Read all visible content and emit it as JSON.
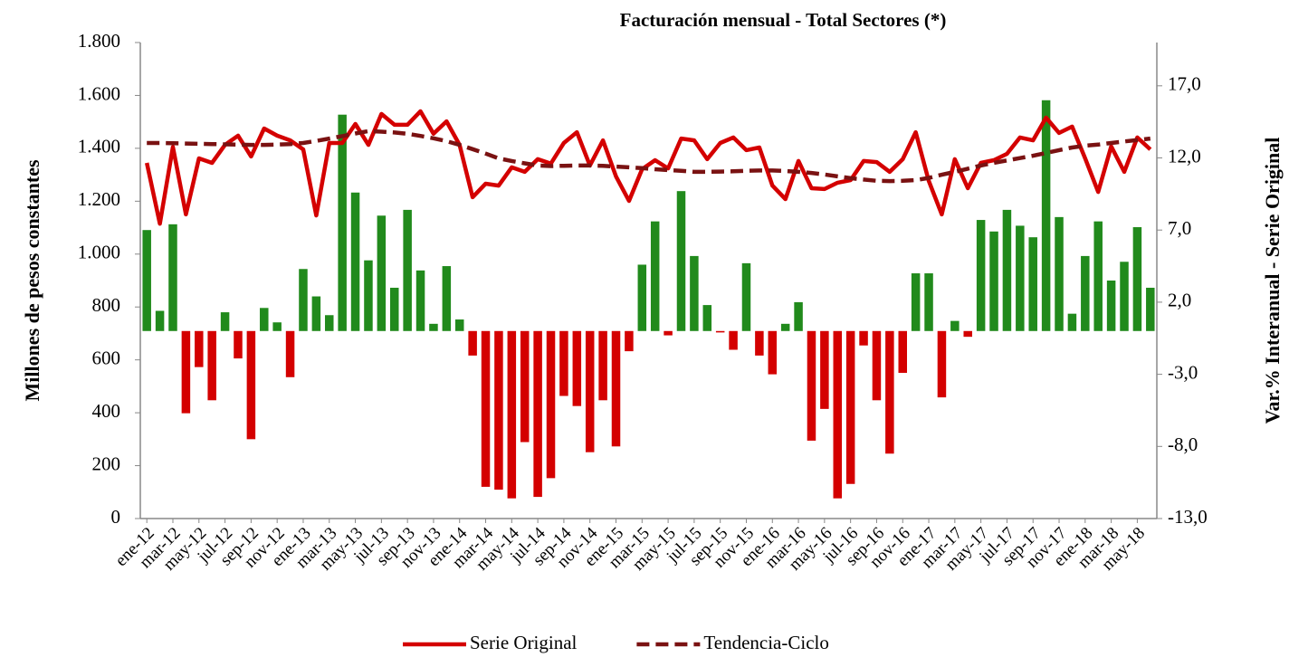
{
  "chart_data": {
    "type": "bar_line",
    "title": "Facturación mensual -  Total Sectores (*)",
    "y_label": "Millones de pesos constantes",
    "y2_label": "Var.% Interanual - Serie Original",
    "categories": [
      "ene-12",
      null,
      "mar-12",
      null,
      "may-12",
      null,
      "jul-12",
      null,
      "sep-12",
      null,
      "nov-12",
      null,
      "ene-13",
      null,
      "mar-13",
      null,
      "may-13",
      null,
      "jul-13",
      null,
      "sep-13",
      null,
      "nov-13",
      null,
      "ene-14",
      null,
      "mar-14",
      null,
      "may-14",
      null,
      "jul-14",
      null,
      "sep-14",
      null,
      "nov-14",
      null,
      "ene-15",
      null,
      "mar-15",
      null,
      "may-15",
      null,
      "jul-15",
      null,
      "sep-15",
      null,
      "nov-15",
      null,
      "ene-16",
      null,
      "mar-16",
      null,
      "may-16",
      null,
      "jul-16",
      null,
      "sep-16",
      null,
      "nov-16",
      null,
      "ene-17",
      null,
      "mar-17",
      null,
      "may-17",
      null,
      "jul-17",
      null,
      "sep-17",
      null,
      "nov-17",
      null,
      "ene-18",
      null,
      "mar-18",
      null,
      "may-18",
      null
    ],
    "ylim": [
      0,
      1800
    ],
    "yticks": [
      0,
      200,
      400,
      600,
      800,
      {
        "value": 1000,
        "label": "1.000"
      },
      {
        "value": 1200,
        "label": "1.200"
      },
      {
        "value": 1400,
        "label": "1.400"
      },
      {
        "value": 1600,
        "label": "1.600"
      },
      {
        "value": 1800,
        "label": "1.800"
      }
    ],
    "y2lim": [
      -13,
      20
    ],
    "y2ticks": [
      {
        "value": -13,
        "label": "-13,0"
      },
      {
        "value": -8,
        "label": "-8,0"
      },
      {
        "value": -3,
        "label": "-3,0"
      },
      {
        "value": 2,
        "label": "2,0"
      },
      {
        "value": 7,
        "label": "7,0"
      },
      {
        "value": 12,
        "label": "12,0"
      },
      {
        "value": 17,
        "label": "17,0"
      }
    ],
    "legend": "bottom",
    "series": [
      {
        "kind": "bar",
        "axis": "y2",
        "positive_color": "#218a1c",
        "negative_color": "#d40000",
        "values": [
          7.0,
          1.4,
          7.4,
          -5.7,
          -2.5,
          -4.8,
          1.3,
          -1.9,
          -7.5,
          1.6,
          0.6,
          -3.2,
          4.3,
          2.4,
          1.1,
          15.0,
          9.6,
          4.9,
          8.0,
          3.0,
          8.4,
          4.2,
          0.5,
          4.5,
          0.8,
          -1.7,
          -10.8,
          -11.0,
          -11.6,
          -7.7,
          -11.5,
          -10.2,
          -4.5,
          -5.2,
          -8.4,
          -4.8,
          -8.0,
          -1.4,
          4.6,
          7.6,
          -0.3,
          9.7,
          5.2,
          1.8,
          -0.1,
          -1.3,
          4.7,
          -1.7,
          -3.0,
          0.5,
          2.0,
          -7.6,
          -5.4,
          -11.6,
          -10.6,
          -1.0,
          -4.8,
          -8.5,
          -2.9,
          4.0,
          4.0,
          -4.6,
          0.7,
          -0.4,
          7.7,
          6.9,
          8.4,
          7.3,
          6.5,
          16.0,
          7.9,
          1.2,
          5.2,
          7.6,
          3.5,
          4.8,
          7.2,
          3.0
        ]
      },
      {
        "kind": "line",
        "name": "Serie Original",
        "color": "#d40000",
        "dash": false,
        "values": [
          1345,
          1115,
          1405,
          1150,
          1362,
          1345,
          1413,
          1448,
          1369,
          1475,
          1448,
          1430,
          1396,
          1146,
          1420,
          1420,
          1492,
          1413,
          1530,
          1489,
          1489,
          1540,
          1455,
          1502,
          1413,
          1215,
          1266,
          1259,
          1328,
          1311,
          1359,
          1342,
          1420,
          1461,
          1335,
          1430,
          1294,
          1201,
          1321,
          1355,
          1324,
          1437,
          1430,
          1359,
          1420,
          1441,
          1393,
          1403,
          1259,
          1208,
          1352,
          1249,
          1246,
          1270,
          1280,
          1352,
          1348,
          1311,
          1359,
          1461,
          1277,
          1150,
          1359,
          1249,
          1345,
          1355,
          1379,
          1441,
          1430,
          1516,
          1458,
          1482,
          1362,
          1235,
          1407,
          1311,
          1441,
          1396
        ]
      },
      {
        "kind": "line",
        "name": "Tendencia-Ciclo",
        "color": "#7a1212",
        "dash": true,
        "values": [
          1420,
          1420,
          1419,
          1418,
          1417,
          1416,
          1415,
          1414,
          1413,
          1413,
          1414,
          1416,
          1420,
          1428,
          1437,
          1446,
          1456,
          1465,
          1463,
          1460,
          1455,
          1447,
          1438,
          1427,
          1413,
          1397,
          1380,
          1362,
          1352,
          1343,
          1335,
          1333,
          1334,
          1335,
          1335,
          1334,
          1331,
          1328,
          1325,
          1321,
          1318,
          1315,
          1311,
          1311,
          1312,
          1313,
          1315,
          1316,
          1316,
          1314,
          1311,
          1307,
          1301,
          1294,
          1287,
          1282,
          1277,
          1276,
          1277,
          1280,
          1288,
          1300,
          1311,
          1323,
          1335,
          1345,
          1354,
          1363,
          1372,
          1382,
          1393,
          1403,
          1410,
          1414,
          1420,
          1426,
          1431,
          1437
        ]
      }
    ]
  }
}
